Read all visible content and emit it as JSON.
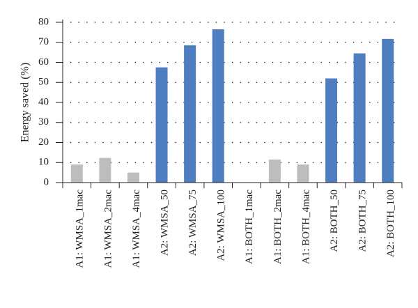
{
  "chart_data": {
    "type": "bar",
    "title": "",
    "xlabel": "",
    "ylabel": "Energy saved (%)",
    "ylim": [
      0,
      80
    ],
    "yticks": [
      0,
      10,
      20,
      30,
      40,
      50,
      60,
      70,
      80
    ],
    "grid": "dotted horizontal",
    "categories": [
      "A1: WMSA_1mac",
      "A1: WMSA_2mac",
      "A1: WMSA_4mac",
      "A2: WMSA_50",
      "A2: WMSA_75",
      "A2: WMSA_100",
      "A1: BOTH_1mac",
      "A1: BOTH_2mac",
      "A1: BOTH_4mac",
      "A2: BOTH_50",
      "A2: BOTH_75",
      "A2: BOTH_100"
    ],
    "values": [
      9,
      12.3,
      5,
      57.5,
      68.5,
      76.5,
      0,
      11.5,
      9,
      52,
      64.5,
      71.7
    ],
    "colors": [
      "#bdbdbd",
      "#bdbdbd",
      "#bdbdbd",
      "#4f7ec0",
      "#4f7ec0",
      "#4f7ec0",
      "#bdbdbd",
      "#bdbdbd",
      "#bdbdbd",
      "#4f7ec0",
      "#4f7ec0",
      "#4f7ec0"
    ]
  }
}
